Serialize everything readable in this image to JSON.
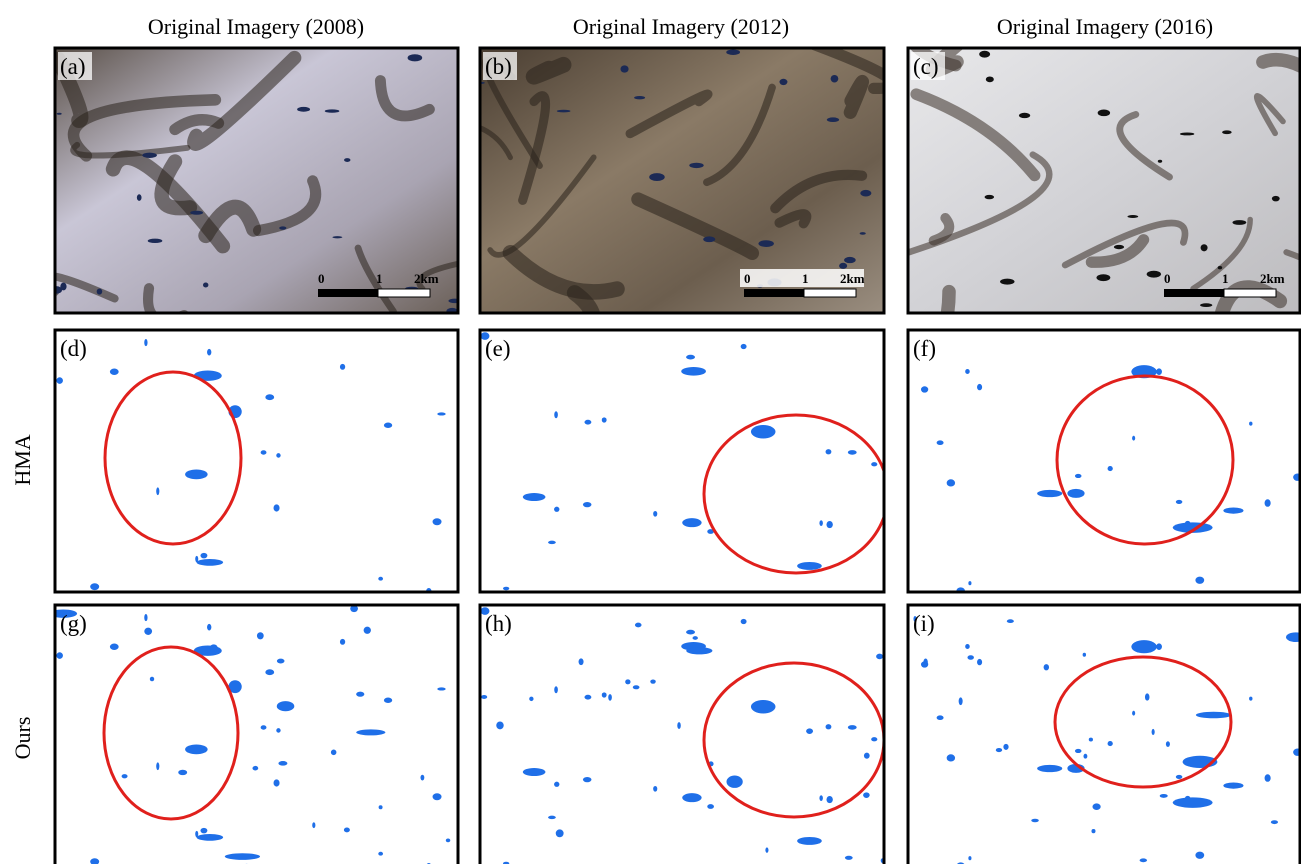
{
  "columns": [
    {
      "title": "Original Imagery (2008)"
    },
    {
      "title": "Original Imagery (2012)"
    },
    {
      "title": "Original Imagery (2016)"
    }
  ],
  "rows": [
    {
      "label": "HMA"
    },
    {
      "label": "Ours"
    }
  ],
  "panels": [
    {
      "label": "(a)",
      "scale": [
        "0",
        "1",
        "2km"
      ]
    },
    {
      "label": "(b)",
      "scale": [
        "0",
        "1",
        "2km"
      ]
    },
    {
      "label": "(c)",
      "scale": [
        "0",
        "1",
        "2km"
      ]
    },
    {
      "label": "(d)"
    },
    {
      "label": "(e)"
    },
    {
      "label": "(f)"
    },
    {
      "label": "(g)"
    },
    {
      "label": "(h)"
    },
    {
      "label": "(i)"
    }
  ]
}
